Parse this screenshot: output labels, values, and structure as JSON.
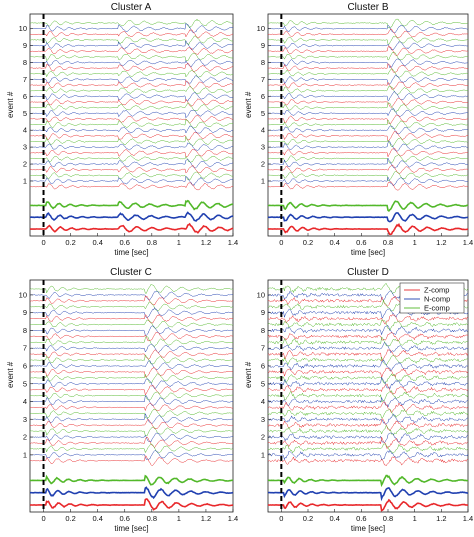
{
  "chart_data": [
    {
      "type": "line",
      "title": "Cluster A",
      "xlabel": "time [sec]",
      "ylabel": "event #",
      "xlim": [
        -0.1,
        1.4
      ],
      "x_ticks": [
        0,
        0.2,
        0.4,
        0.6,
        0.8,
        1,
        1.2,
        1.4
      ],
      "x_tick_labels": [
        "0",
        "0.2",
        "0.4",
        "0.6",
        "0.8",
        "1",
        "1.2",
        "1.4"
      ],
      "y_tick_labels": [
        "1",
        "2",
        "3",
        "4",
        "5",
        "6",
        "7",
        "8",
        "9",
        "10"
      ],
      "onset_marker_x": 0,
      "events": 10,
      "arrivals_sec": [
        0.02,
        0.55,
        1.05
      ],
      "components": [
        "Z-comp",
        "N-comp",
        "E-comp"
      ],
      "stack_traces": [
        "E-comp",
        "N-comp",
        "Z-comp"
      ],
      "legend": false
    },
    {
      "type": "line",
      "title": "Cluster B",
      "xlabel": "time [sec]",
      "ylabel": "event #",
      "xlim": [
        -0.1,
        1.4
      ],
      "x_ticks": [
        0,
        0.2,
        0.4,
        0.6,
        0.8,
        1,
        1.2,
        1.4
      ],
      "x_tick_labels": [
        "0",
        "0.2",
        "0.4",
        "0.6",
        "0.8",
        "1",
        "1.2",
        "1.4"
      ],
      "y_tick_labels": [
        "1",
        "2",
        "3",
        "4",
        "5",
        "6",
        "7",
        "8",
        "9",
        "10"
      ],
      "onset_marker_x": 0,
      "events": 10,
      "arrivals_sec": [
        0.02,
        0.8
      ],
      "components": [
        "Z-comp",
        "N-comp",
        "E-comp"
      ],
      "stack_traces": [
        "E-comp",
        "N-comp",
        "Z-comp"
      ],
      "legend": false
    },
    {
      "type": "line",
      "title": "Cluster C",
      "xlabel": "time [sec]",
      "ylabel": "event #",
      "xlim": [
        -0.1,
        1.4
      ],
      "x_ticks": [
        0,
        0.2,
        0.4,
        0.6,
        0.8,
        1,
        1.2,
        1.4
      ],
      "x_tick_labels": [
        "0",
        "0.2",
        "0.4",
        "0.6",
        "0.8",
        "1",
        "1.2",
        "1.4"
      ],
      "y_tick_labels": [
        "1",
        "2",
        "3",
        "4",
        "5",
        "6",
        "7",
        "8",
        "9",
        "10"
      ],
      "onset_marker_x": 0,
      "events": 10,
      "arrivals_sec": [
        0.02,
        0.75
      ],
      "components": [
        "Z-comp",
        "N-comp",
        "E-comp"
      ],
      "stack_traces": [
        "E-comp",
        "N-comp",
        "Z-comp"
      ],
      "legend": false
    },
    {
      "type": "line",
      "title": "Cluster D",
      "xlabel": "time [sec]",
      "ylabel": "event #",
      "xlim": [
        -0.1,
        1.4
      ],
      "x_ticks": [
        0,
        0.2,
        0.4,
        0.6,
        0.8,
        1,
        1.2,
        1.4
      ],
      "x_tick_labels": [
        "0",
        "0.2",
        "0.4",
        "0.6",
        "0.8",
        "1",
        "1.2",
        "1.4"
      ],
      "y_tick_labels": [
        "1",
        "2",
        "3",
        "4",
        "5",
        "6",
        "7",
        "8",
        "9",
        "10"
      ],
      "onset_marker_x": 0,
      "events": 10,
      "arrivals_sec": [
        0.02,
        0.75
      ],
      "components": [
        "Z-comp",
        "N-comp",
        "E-comp"
      ],
      "stack_traces": [
        "E-comp",
        "N-comp",
        "Z-comp"
      ],
      "legend": true,
      "legend_position": "top-right"
    }
  ],
  "colors": {
    "Z-comp": "#e8282b",
    "N-comp": "#2040b0",
    "E-comp": "#52b82a",
    "onset": "#000000"
  }
}
